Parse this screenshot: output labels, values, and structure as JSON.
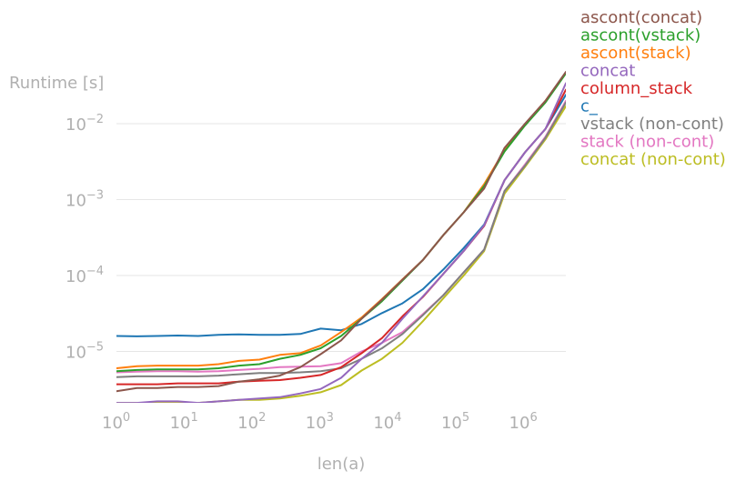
{
  "chart_data": {
    "type": "line",
    "title": "",
    "xlabel": "len(a)",
    "ylabel": "Runtime [s]",
    "xscale": "log",
    "yscale": "log",
    "xlim": [
      1,
      4194304
    ],
    "ylim": [
      2e-06,
      0.05
    ],
    "grid": "horizontal",
    "legend_position": "top-right, outside plot",
    "xticks": [
      {
        "base": "10",
        "exp": "0"
      },
      {
        "base": "10",
        "exp": "1"
      },
      {
        "base": "10",
        "exp": "2"
      },
      {
        "base": "10",
        "exp": "3"
      },
      {
        "base": "10",
        "exp": "4"
      },
      {
        "base": "10",
        "exp": "5"
      },
      {
        "base": "10",
        "exp": "6"
      }
    ],
    "yticks": [
      {
        "base": "10",
        "exp": "−5"
      },
      {
        "base": "10",
        "exp": "−4"
      },
      {
        "base": "10",
        "exp": "−3"
      },
      {
        "base": "10",
        "exp": "−2"
      }
    ],
    "x": [
      1,
      2,
      4,
      8,
      16,
      32,
      64,
      128,
      256,
      512,
      1024,
      2048,
      4096,
      8192,
      16384,
      32768,
      65536,
      131072,
      262144,
      524288,
      1048576,
      2097152,
      4194304
    ],
    "series": [
      {
        "name": "ascont(concat)",
        "color": "#8c564b",
        "values": [
          3e-06,
          3.3e-06,
          3.3e-06,
          3.4e-06,
          3.4e-06,
          3.5e-06,
          4e-06,
          4.3e-06,
          4.8e-06,
          6.2e-06,
          9.2e-06,
          1.4e-05,
          2.7e-05,
          4.8e-05,
          8.8e-05,
          0.00016,
          0.00034,
          0.00068,
          0.0014,
          0.0048,
          0.01,
          0.02,
          0.048
        ]
      },
      {
        "name": "ascont(vstack)",
        "color": "#2ca02c",
        "values": [
          5.5e-06,
          5.7e-06,
          5.8e-06,
          5.8e-06,
          5.8e-06,
          6e-06,
          6.5e-06,
          6.8e-06,
          8e-06,
          9e-06,
          1.1e-05,
          1.6e-05,
          2.7e-05,
          4.6e-05,
          8.6e-05,
          0.00016,
          0.00034,
          0.00068,
          0.0015,
          0.0043,
          0.0095,
          0.019,
          0.046
        ]
      },
      {
        "name": "ascont(stack)",
        "color": "#ff7f0e",
        "values": [
          6e-06,
          6.4e-06,
          6.5e-06,
          6.5e-06,
          6.5e-06,
          6.8e-06,
          7.5e-06,
          7.8e-06,
          9e-06,
          9.5e-06,
          1.2e-05,
          1.8e-05,
          2.8e-05,
          4.9e-05,
          8.9e-05,
          0.00016,
          0.00034,
          0.00068,
          0.0016,
          0.0045,
          0.0098,
          0.02,
          0.047
        ]
      },
      {
        "name": "concat",
        "color": "#9467bd",
        "values": [
          2.1e-06,
          2.1e-06,
          2.2e-06,
          2.2e-06,
          2.1e-06,
          2.2e-06,
          2.3e-06,
          2.4e-06,
          2.5e-06,
          2.8e-06,
          3.2e-06,
          4.5e-06,
          8e-06,
          1.3e-05,
          2.7e-05,
          5.3e-05,
          0.000105,
          0.00021,
          0.00046,
          0.0018,
          0.0042,
          0.0085,
          0.034
        ]
      },
      {
        "name": "column_stack",
        "color": "#d62728",
        "values": [
          3.7e-06,
          3.7e-06,
          3.7e-06,
          3.8e-06,
          3.8e-06,
          3.8e-06,
          4e-06,
          4.1e-06,
          4.2e-06,
          4.5e-06,
          4.9e-06,
          6.2e-06,
          9.5e-06,
          1.5e-05,
          2.9e-05,
          5.2e-05,
          0.000105,
          0.00021,
          0.00045,
          0.0018,
          0.0042,
          0.0085,
          0.028
        ]
      },
      {
        "name": "c_",
        "color": "#1f77b4",
        "values": [
          1.6e-05,
          1.58e-05,
          1.6e-05,
          1.62e-05,
          1.6e-05,
          1.65e-05,
          1.68e-05,
          1.65e-05,
          1.65e-05,
          1.7e-05,
          2e-05,
          1.9e-05,
          2.3e-05,
          3.2e-05,
          4.3e-05,
          6.6e-05,
          0.00012,
          0.00023,
          0.00047,
          0.0018,
          0.0042,
          0.0085,
          0.024
        ]
      },
      {
        "name": "vstack (non-cont)",
        "color": "#7f7f7f",
        "values": [
          4.6e-06,
          4.7e-06,
          4.7e-06,
          4.7e-06,
          4.7e-06,
          4.8e-06,
          5e-06,
          5.2e-06,
          5.2e-06,
          5.3e-06,
          5.5e-06,
          6e-06,
          8e-06,
          1.1e-05,
          1.7e-05,
          3e-05,
          5.5e-05,
          0.00011,
          0.00022,
          0.0013,
          0.0028,
          0.0065,
          0.019
        ]
      },
      {
        "name": "stack (non-cont)",
        "color": "#e377c2",
        "values": [
          5.3e-06,
          5.4e-06,
          5.5e-06,
          5.5e-06,
          5.4e-06,
          5.5e-06,
          5.7e-06,
          5.9e-06,
          6.2e-06,
          6.3e-06,
          6.4e-06,
          7e-06,
          1e-05,
          1.3e-05,
          1.8e-05,
          3.1e-05,
          5.5e-05,
          0.00011,
          0.00022,
          0.0013,
          0.0029,
          0.0067,
          0.02
        ]
      },
      {
        "name": "concat (non-cont)",
        "color": "#bcbd22",
        "values": [
          2.1e-06,
          2.1e-06,
          2.1e-06,
          2.1e-06,
          2.1e-06,
          2.2e-06,
          2.3e-06,
          2.3e-06,
          2.4e-06,
          2.6e-06,
          2.9e-06,
          3.6e-06,
          5.6e-06,
          8e-06,
          1.3e-05,
          2.5e-05,
          5e-05,
          0.0001,
          0.00021,
          0.0012,
          0.0027,
          0.0062,
          0.017
        ]
      }
    ]
  }
}
